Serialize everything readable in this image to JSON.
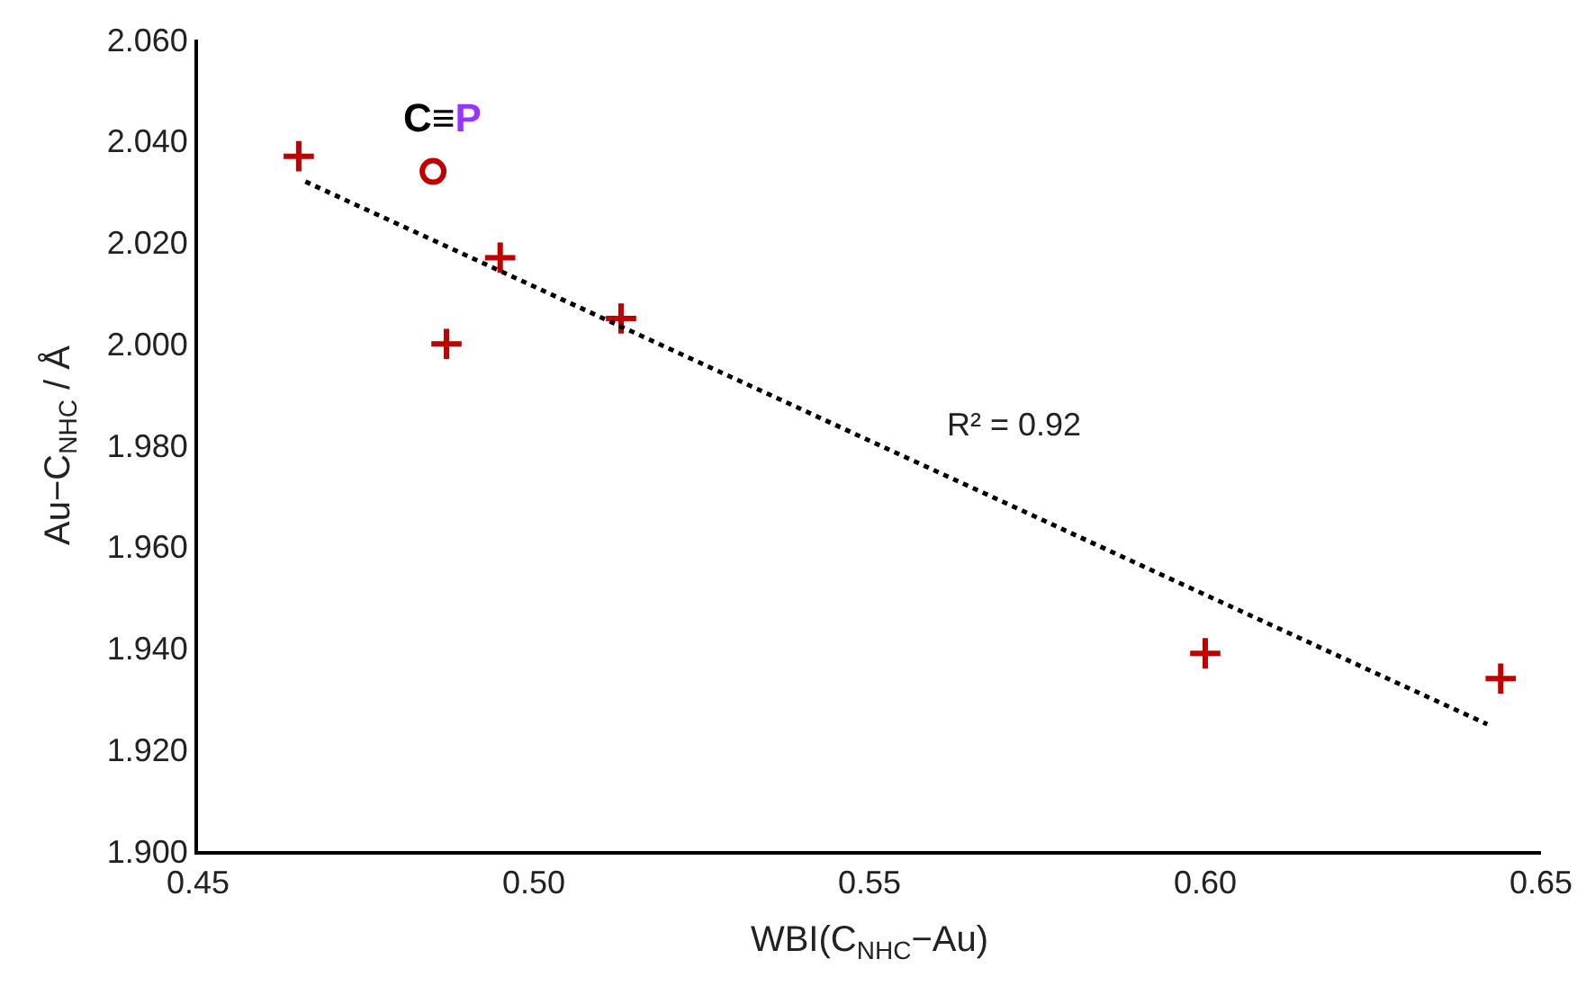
{
  "chart_data": {
    "type": "scatter",
    "xlabel": "WBI(C$_{NHC}$−Au)",
    "ylabel": "Au−C$_{NHC}$ / Å",
    "xlim": [
      0.45,
      0.65
    ],
    "ylim": [
      1.9,
      2.06
    ],
    "xticks": [
      {
        "value": 0.45,
        "label": "0.45"
      },
      {
        "value": 0.5,
        "label": "0.50"
      },
      {
        "value": 0.55,
        "label": "0.55"
      },
      {
        "value": 0.6,
        "label": "0.60"
      },
      {
        "value": 0.65,
        "label": "0.65"
      }
    ],
    "yticks": [
      {
        "value": 1.9,
        "label": "1.900"
      },
      {
        "value": 1.92,
        "label": "1.920"
      },
      {
        "value": 1.94,
        "label": "1.940"
      },
      {
        "value": 1.96,
        "label": "1.960"
      },
      {
        "value": 1.98,
        "label": "1.980"
      },
      {
        "value": 2.0,
        "label": "2.000"
      },
      {
        "value": 2.02,
        "label": "2.020"
      },
      {
        "value": 2.04,
        "label": "2.040"
      },
      {
        "value": 2.06,
        "label": "2.060"
      }
    ],
    "grid": false,
    "series": [
      {
        "marker": "cross",
        "color": "#c00000",
        "x": [
          0.465,
          0.495,
          0.487,
          0.513,
          0.6,
          0.644
        ],
        "values": [
          2.037,
          2.017,
          2.0,
          2.005,
          1.939,
          1.934
        ]
      },
      {
        "marker": "circle",
        "color": "#c00000",
        "x": [
          0.485
        ],
        "values": [
          2.034
        ]
      },
      {
        "type": "line",
        "line_style": "dotted",
        "marker": "none",
        "color": "#000000",
        "x": [
          0.466,
          0.642
        ],
        "values": [
          2.032,
          1.925
        ]
      }
    ],
    "annotations": [
      {
        "text": "C≡P",
        "x": 0.485,
        "y": 2.034
      },
      "R² = 0.92"
    ]
  }
}
